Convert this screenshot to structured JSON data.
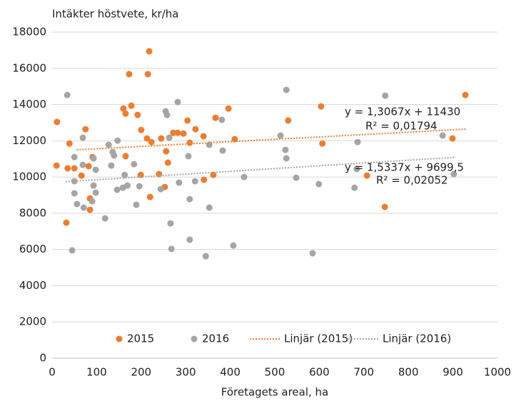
{
  "chart_data": {
    "type": "scatter",
    "title": "Intäkter höstvete, kr/ha",
    "x_label": "Företagets areal, ha",
    "xlim": [
      0,
      1000
    ],
    "xticks": [
      0,
      100,
      200,
      300,
      400,
      500,
      600,
      700,
      800,
      900,
      1000
    ],
    "ylim": [
      0,
      18000
    ],
    "yticks": [
      0,
      2000,
      4000,
      6000,
      8000,
      10000,
      12000,
      14000,
      16000,
      18000
    ],
    "grid": true,
    "legend": "bottom",
    "series": [
      {
        "name": "2015",
        "color": "#ed7d31",
        "x": [
          11,
          10,
          32,
          35,
          39,
          50,
          66,
          75,
          82,
          85,
          85,
          91,
          160,
          165,
          165,
          173,
          178,
          192,
          200,
          199,
          215,
          218,
          213,
          223,
          220,
          240,
          245,
          253,
          256,
          260,
          272,
          282,
          295,
          304,
          309,
          322,
          340,
          341,
          367,
          362,
          396,
          410,
          530,
          604,
          607,
          707,
          747,
          899,
          928
        ],
        "y": [
          13040,
          10630,
          7480,
          10480,
          11850,
          10480,
          10080,
          12640,
          10600,
          8820,
          8190,
          11100,
          13780,
          13500,
          11150,
          15680,
          13940,
          13430,
          12600,
          10120,
          15680,
          16940,
          12130,
          11930,
          8900,
          10160,
          12130,
          9450,
          11420,
          10790,
          12440,
          12440,
          12400,
          13120,
          11890,
          12640,
          12250,
          9850,
          13270,
          10120,
          13780,
          12090,
          13120,
          13900,
          11850,
          10080,
          8350,
          12130,
          14530
        ]
      },
      {
        "name": "2016",
        "color": "#a5a5a5",
        "x": [
          34,
          45,
          56,
          69,
          50,
          50,
          50,
          71,
          69,
          90,
          93,
          93,
          98,
          98,
          119,
          127,
          136,
          133,
          139,
          146,
          147,
          159,
          163,
          169,
          184,
          189,
          196,
          255,
          258,
          263,
          266,
          268,
          282,
          285,
          244,
          306,
          309,
          309,
          321,
          345,
          353,
          353,
          381,
          383,
          407,
          431,
          513,
          524,
          526,
          526,
          548,
          585,
          599,
          679,
          684,
          686,
          748,
          877,
          902
        ],
        "y": [
          14530,
          5950,
          8510,
          12170,
          11100,
          9770,
          9100,
          8310,
          10670,
          8660,
          11030,
          9530,
          10400,
          9140,
          7720,
          11780,
          11380,
          10630,
          11190,
          9300,
          12010,
          9410,
          10120,
          9530,
          10710,
          8470,
          9490,
          13630,
          13430,
          12170,
          7440,
          6030,
          14140,
          9690,
          9330,
          11150,
          8780,
          6540,
          9770,
          5630,
          11780,
          8310,
          13160,
          11460,
          6220,
          10000,
          12290,
          11500,
          14810,
          11030,
          9960,
          5790,
          9610,
          9410,
          10440,
          11930,
          14490,
          12290,
          10160
        ]
      }
    ],
    "trendlines": [
      {
        "name": "Linjär (2015)",
        "color": "#ed7d31",
        "slope": 1.3067,
        "intercept": 11430,
        "x": [
          55,
          930
        ],
        "equation": "y = 1,3067x + 11430",
        "r2": "R² = 0,01794"
      },
      {
        "name": "Linjär (2016)",
        "color": "#a5a5a5",
        "slope": 1.5337,
        "intercept": 9699.5,
        "x": [
          30,
          905
        ],
        "equation": "y = 1,5337x + 9699,5",
        "r2": "R² = 0,02052"
      }
    ]
  }
}
